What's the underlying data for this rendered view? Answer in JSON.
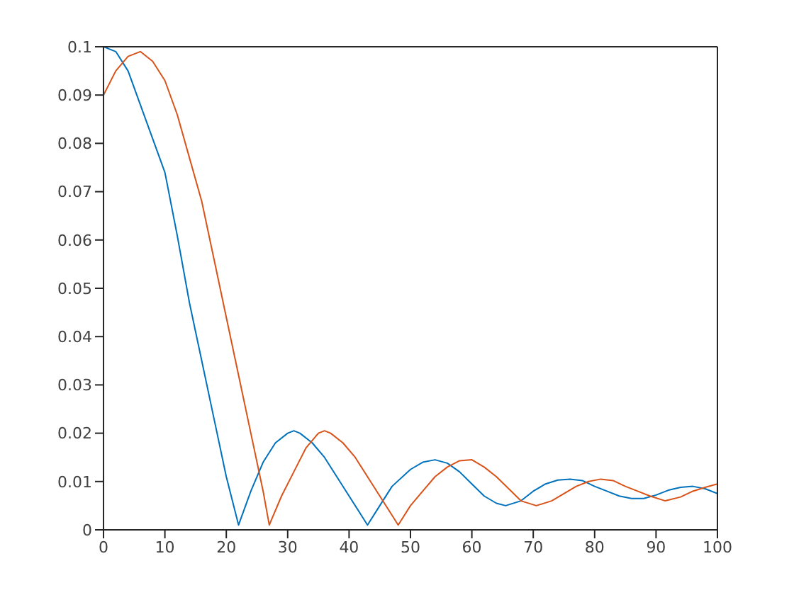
{
  "chart_data": {
    "type": "line",
    "xlim": [
      0,
      100
    ],
    "ylim": [
      0,
      0.1
    ],
    "xticks": [
      0,
      10,
      20,
      30,
      40,
      50,
      60,
      70,
      80,
      90,
      100
    ],
    "yticks": [
      0,
      0.01,
      0.02,
      0.03,
      0.04,
      0.05,
      0.06,
      0.07,
      0.08,
      0.09,
      0.1
    ],
    "legend": false,
    "marker": "none",
    "line_style": "solid",
    "series": [
      {
        "color": "#0072bd",
        "x": [
          0,
          2,
          4,
          6,
          8,
          10,
          12,
          14,
          16,
          18,
          20,
          22,
          24,
          26,
          28,
          30,
          31,
          32,
          34,
          36,
          38,
          40,
          42,
          43,
          45,
          47,
          50,
          52,
          54,
          56,
          58,
          60,
          62,
          64,
          65.5,
          68,
          70,
          72,
          74,
          76,
          78,
          80,
          82,
          84,
          86,
          88,
          90,
          92,
          94,
          96,
          98,
          100
        ],
        "values": [
          0.1,
          0.099,
          0.095,
          0.088,
          0.081,
          0.074,
          0.061,
          0.047,
          0.035,
          0.023,
          0.011,
          0.001,
          0.008,
          0.014,
          0.018,
          0.02,
          0.0205,
          0.02,
          0.018,
          0.015,
          0.011,
          0.007,
          0.003,
          0.001,
          0.005,
          0.009,
          0.0125,
          0.014,
          0.0145,
          0.0138,
          0.012,
          0.0095,
          0.007,
          0.0055,
          0.005,
          0.006,
          0.008,
          0.0095,
          0.0103,
          0.0105,
          0.0102,
          0.009,
          0.008,
          0.007,
          0.0065,
          0.0065,
          0.0072,
          0.0082,
          0.0088,
          0.009,
          0.0085,
          0.0075
        ]
      },
      {
        "color": "#d95319",
        "x": [
          0,
          2,
          4,
          6,
          8,
          10,
          12,
          14,
          16,
          18,
          20,
          22,
          24,
          26,
          27,
          29,
          31,
          33,
          35,
          36,
          37,
          39,
          41,
          43,
          45,
          47,
          48,
          50,
          52,
          54,
          56,
          58,
          60,
          62,
          64,
          66,
          68,
          70.5,
          73,
          75,
          77,
          79,
          81,
          83,
          85,
          87,
          89,
          91.5,
          94,
          96,
          98,
          100
        ],
        "values": [
          0.09,
          0.095,
          0.098,
          0.099,
          0.097,
          0.093,
          0.086,
          0.077,
          0.068,
          0.056,
          0.044,
          0.032,
          0.02,
          0.008,
          0.001,
          0.007,
          0.012,
          0.017,
          0.02,
          0.0205,
          0.02,
          0.018,
          0.015,
          0.011,
          0.007,
          0.003,
          0.001,
          0.005,
          0.008,
          0.011,
          0.013,
          0.0143,
          0.0145,
          0.013,
          0.011,
          0.0085,
          0.006,
          0.005,
          0.006,
          0.0075,
          0.009,
          0.01,
          0.0105,
          0.0102,
          0.009,
          0.008,
          0.007,
          0.006,
          0.0068,
          0.008,
          0.0088,
          0.0095
        ]
      }
    ]
  }
}
